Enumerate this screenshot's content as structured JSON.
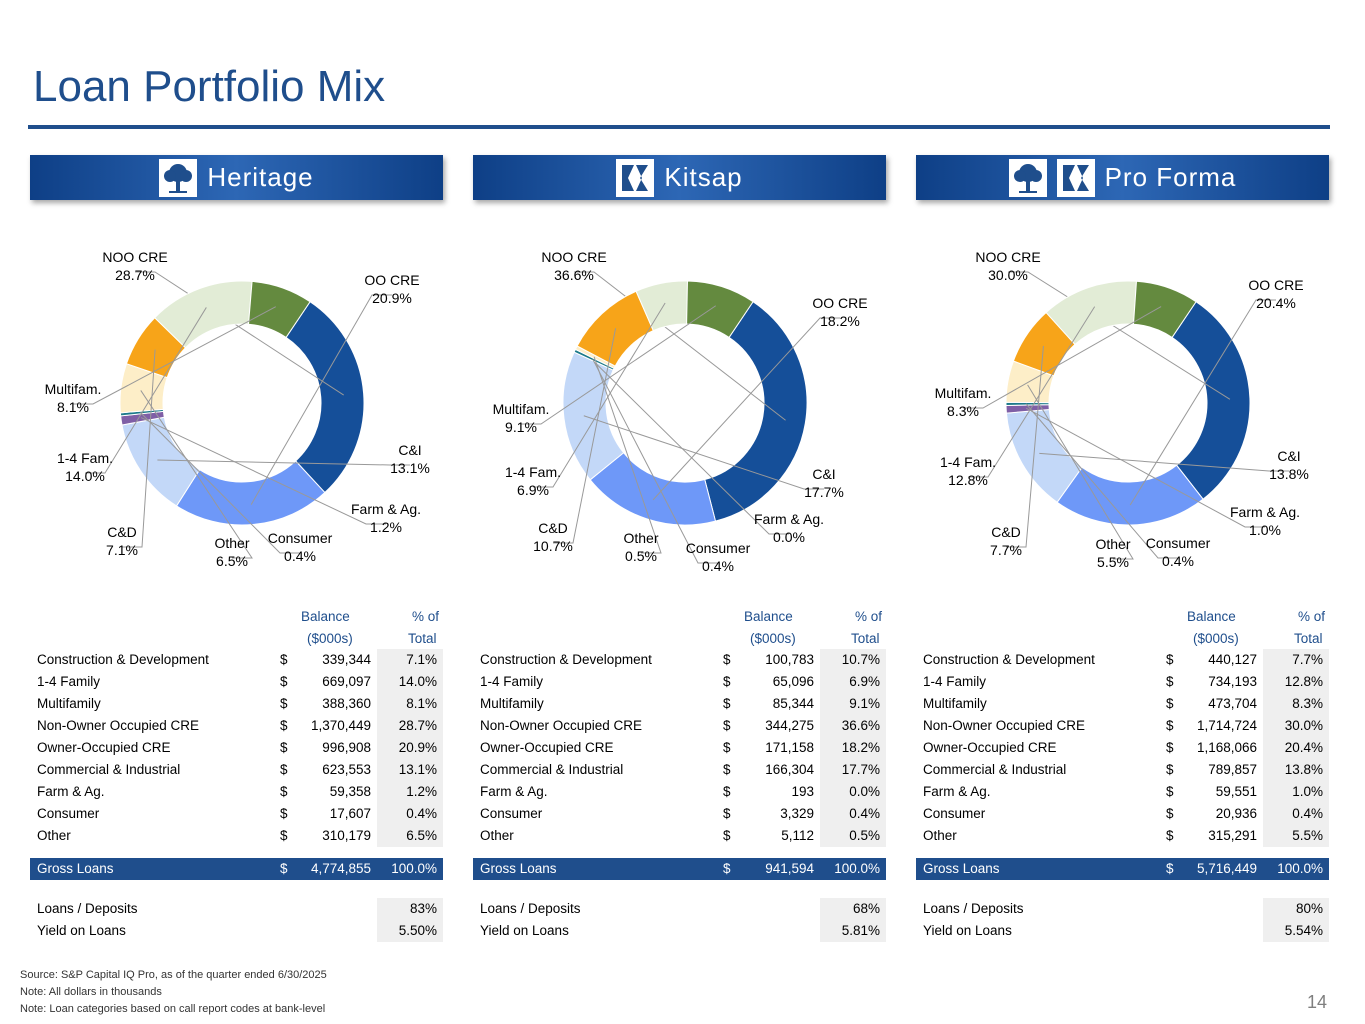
{
  "title": "Loan Portfolio Mix",
  "page_number": "14",
  "footnotes": [
    "Source: S&P Capital IQ Pro, as of the quarter ended 6/30/2025",
    "Note: All dollars in thousands",
    "Note: Loan categories based on call report codes at bank-level"
  ],
  "colors": {
    "NOO CRE": "#154f99",
    "OO CRE": "#6e98f8",
    "C&I": "#c3d8f8",
    "Farm & Ag.": "#7f5fa6",
    "Consumer": "#1c7a8a",
    "Other": "#fdeec8",
    "C&D": "#f7a419",
    "1-4 Fam.": "#e2ecd6",
    "Multifam.": "#648a3f"
  },
  "table_header": {
    "balance_1": "Balance",
    "balance_2": "($000s)",
    "pct_1": "% of",
    "pct_2": "Total"
  },
  "chart_data": [
    {
      "type": "pie",
      "title": "Heritage",
      "slices": [
        {
          "label": "NOO CRE",
          "value": 28.7
        },
        {
          "label": "OO CRE",
          "value": 20.9
        },
        {
          "label": "C&I",
          "value": 13.1
        },
        {
          "label": "Farm & Ag.",
          "value": 1.2
        },
        {
          "label": "Consumer",
          "value": 0.4
        },
        {
          "label": "Other",
          "value": 6.5
        },
        {
          "label": "C&D",
          "value": 7.1
        },
        {
          "label": "1-4 Fam.",
          "value": 14.0
        },
        {
          "label": "Multifam.",
          "value": 8.1
        }
      ],
      "label_text": [
        "28.7%",
        "20.9%",
        "13.1%",
        "1.2%",
        "0.4%",
        "6.5%",
        "7.1%",
        "14.0%",
        "8.1%"
      ],
      "table": [
        {
          "label": "Construction & Development",
          "balance": "339,344",
          "pct": "7.1%"
        },
        {
          "label": "1-4 Family",
          "balance": "669,097",
          "pct": "14.0%"
        },
        {
          "label": "Multifamily",
          "balance": "388,360",
          "pct": "8.1%"
        },
        {
          "label": "Non-Owner Occupied CRE",
          "balance": "1,370,449",
          "pct": "28.7%"
        },
        {
          "label": "Owner-Occupied CRE",
          "balance": "996,908",
          "pct": "20.9%"
        },
        {
          "label": "Commercial & Industrial",
          "balance": "623,553",
          "pct": "13.1%"
        },
        {
          "label": "Farm & Ag.",
          "balance": "59,358",
          "pct": "1.2%"
        },
        {
          "label": "Consumer",
          "balance": "17,607",
          "pct": "0.4%"
        },
        {
          "label": "Other",
          "balance": "310,179",
          "pct": "6.5%"
        }
      ],
      "gross": {
        "label": "Gross Loans",
        "balance": "4,774,855",
        "pct": "100.0%"
      },
      "extra": [
        {
          "label": "Loans / Deposits",
          "value": "83%"
        },
        {
          "label": "Yield on Loans",
          "value": "5.50%"
        }
      ]
    },
    {
      "type": "pie",
      "title": "Kitsap",
      "slices": [
        {
          "label": "NOO CRE",
          "value": 36.6
        },
        {
          "label": "OO CRE",
          "value": 18.2
        },
        {
          "label": "C&I",
          "value": 17.7
        },
        {
          "label": "Farm & Ag.",
          "value": 0.0
        },
        {
          "label": "Consumer",
          "value": 0.4
        },
        {
          "label": "Other",
          "value": 0.5
        },
        {
          "label": "C&D",
          "value": 10.7
        },
        {
          "label": "1-4 Fam.",
          "value": 6.9
        },
        {
          "label": "Multifam.",
          "value": 9.1
        }
      ],
      "label_text": [
        "36.6%",
        "18.2%",
        "17.7%",
        "0.0%",
        "0.4%",
        "0.5%",
        "10.7%",
        "6.9%",
        "9.1%"
      ],
      "table": [
        {
          "label": "Construction & Development",
          "balance": "100,783",
          "pct": "10.7%"
        },
        {
          "label": "1-4 Family",
          "balance": "65,096",
          "pct": "6.9%"
        },
        {
          "label": "Multifamily",
          "balance": "85,344",
          "pct": "9.1%"
        },
        {
          "label": "Non-Owner Occupied CRE",
          "balance": "344,275",
          "pct": "36.6%"
        },
        {
          "label": "Owner-Occupied CRE",
          "balance": "171,158",
          "pct": "18.2%"
        },
        {
          "label": "Commercial & Industrial",
          "balance": "166,304",
          "pct": "17.7%"
        },
        {
          "label": "Farm & Ag.",
          "balance": "193",
          "pct": "0.0%"
        },
        {
          "label": "Consumer",
          "balance": "3,329",
          "pct": "0.4%"
        },
        {
          "label": "Other",
          "balance": "5,112",
          "pct": "0.5%"
        }
      ],
      "gross": {
        "label": "Gross Loans",
        "balance": "941,594",
        "pct": "100.0%"
      },
      "extra": [
        {
          "label": "Loans / Deposits",
          "value": "68%"
        },
        {
          "label": "Yield on Loans",
          "value": "5.81%"
        }
      ]
    },
    {
      "type": "pie",
      "title": "Pro Forma",
      "slices": [
        {
          "label": "NOO CRE",
          "value": 30.0
        },
        {
          "label": "OO CRE",
          "value": 20.4
        },
        {
          "label": "C&I",
          "value": 13.8
        },
        {
          "label": "Farm & Ag.",
          "value": 1.0
        },
        {
          "label": "Consumer",
          "value": 0.4
        },
        {
          "label": "Other",
          "value": 5.5
        },
        {
          "label": "C&D",
          "value": 7.7
        },
        {
          "label": "1-4 Fam.",
          "value": 12.8
        },
        {
          "label": "Multifam.",
          "value": 8.3
        }
      ],
      "label_text": [
        "30.0%",
        "20.4%",
        "13.8%",
        "1.0%",
        "0.4%",
        "5.5%",
        "7.7%",
        "12.8%",
        "8.3%"
      ],
      "table": [
        {
          "label": "Construction & Development",
          "balance": "440,127",
          "pct": "7.7%"
        },
        {
          "label": "1-4 Family",
          "balance": "734,193",
          "pct": "12.8%"
        },
        {
          "label": "Multifamily",
          "balance": "473,704",
          "pct": "8.3%"
        },
        {
          "label": "Non-Owner Occupied CRE",
          "balance": "1,714,724",
          "pct": "30.0%"
        },
        {
          "label": "Owner-Occupied CRE",
          "balance": "1,168,066",
          "pct": "20.4%"
        },
        {
          "label": "Commercial & Industrial",
          "balance": "789,857",
          "pct": "13.8%"
        },
        {
          "label": "Farm & Ag.",
          "balance": "59,551",
          "pct": "1.0%"
        },
        {
          "label": "Consumer",
          "balance": "20,936",
          "pct": "0.4%"
        },
        {
          "label": "Other",
          "balance": "315,291",
          "pct": "5.5%"
        }
      ],
      "gross": {
        "label": "Gross Loans",
        "balance": "5,716,449",
        "pct": "100.0%"
      },
      "extra": [
        {
          "label": "Loans / Deposits",
          "value": "80%"
        },
        {
          "label": "Yield on Loans",
          "value": "5.54%"
        }
      ]
    }
  ]
}
